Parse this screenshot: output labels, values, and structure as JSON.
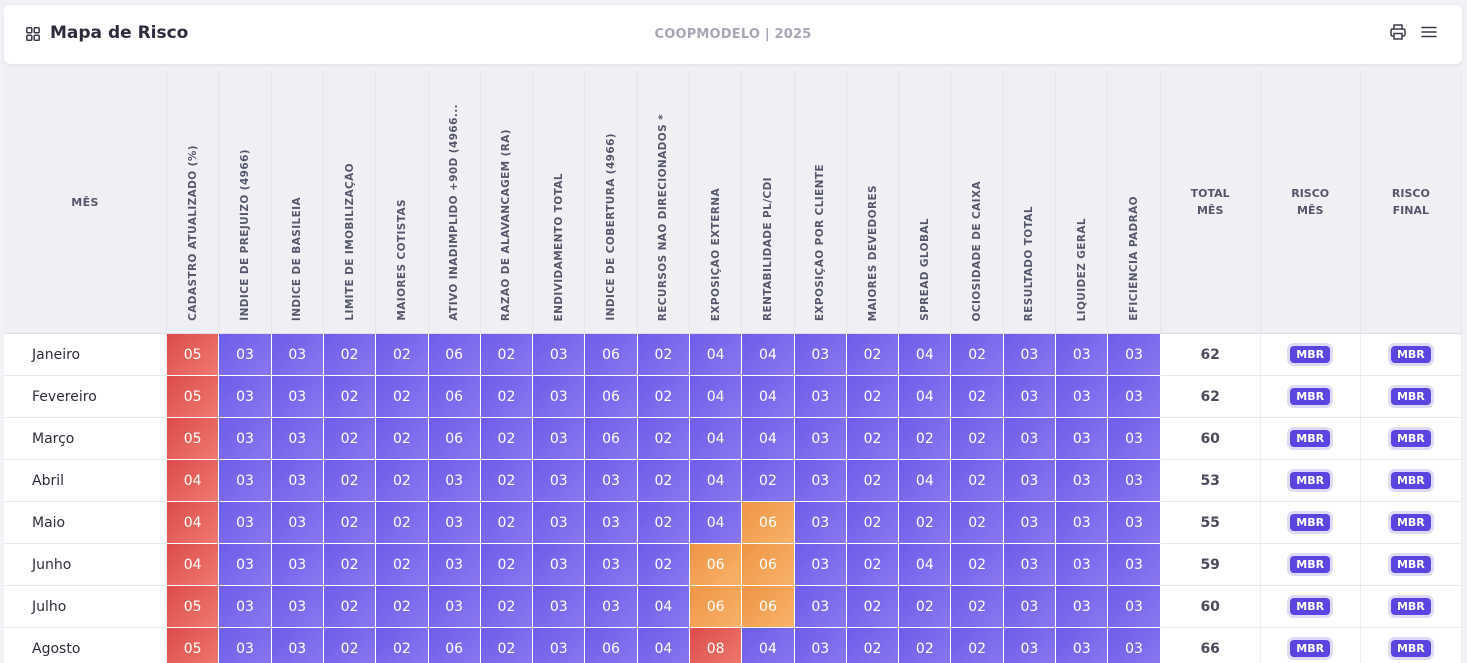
{
  "header": {
    "title": "Mapa de Risco",
    "center_text": "COOPMODELO | 2025",
    "icons": {
      "left": "grid-icon",
      "print": "print-icon",
      "menu": "menu-icon"
    }
  },
  "table": {
    "month_header": "MÊS",
    "columns": [
      "CADASTRO ATUALIZADO (%)",
      "ÍNDICE DE PREJUÍZO (4966)",
      "ÍNDICE DE BASILEIA",
      "LIMITE DE IMOBILIZAÇÃO",
      "MAIORES COTISTAS",
      "ATIVO INADIMPLIDO +90D (4966...",
      "RAZÃO DE ALAVANCAGEM (RA)",
      "ENDIVIDAMENTO TOTAL",
      "ÍNDICE DE COBERTURA (4966)",
      "RECURSOS NÃO DIRECIONADOS *",
      "EXPOSIÇÃO EXTERNA",
      "RENTABILIDADE PL/CDI",
      "EXPOSIÇÃO POR CLIENTE",
      "MAIORES DEVEDORES",
      "SPREAD GLOBAL",
      "OCIOSIDADE DE CAIXA",
      "RESULTADO TOTAL",
      "LIQUIDEZ GERAL",
      "EFICIÊNCIA PADRÃO"
    ],
    "total_header": [
      "TOTAL",
      "MÊS"
    ],
    "risk_month_header": [
      "RISCO",
      "MÊS"
    ],
    "risk_final_header": [
      "RISCO",
      "FINAL"
    ],
    "colors": {
      "purple": "#6d5ce8",
      "red": "#dc4b4b",
      "orange": "#ef9445",
      "badge": "#5a45e0"
    },
    "rows": [
      {
        "month": "Janeiro",
        "scores": [
          "05",
          "03",
          "03",
          "02",
          "02",
          "06",
          "02",
          "03",
          "06",
          "02",
          "04",
          "04",
          "03",
          "02",
          "04",
          "02",
          "03",
          "03",
          "03"
        ],
        "levels": [
          "red",
          "",
          "",
          "",
          "",
          "",
          "",
          "",
          "",
          "",
          "",
          "",
          "",
          "",
          "",
          "",
          "",
          "",
          ""
        ],
        "total": "62",
        "risk_month": "MBR",
        "risk_final": "MBR"
      },
      {
        "month": "Fevereiro",
        "scores": [
          "05",
          "03",
          "03",
          "02",
          "02",
          "06",
          "02",
          "03",
          "06",
          "02",
          "04",
          "04",
          "03",
          "02",
          "04",
          "02",
          "03",
          "03",
          "03"
        ],
        "levels": [
          "red",
          "",
          "",
          "",
          "",
          "",
          "",
          "",
          "",
          "",
          "",
          "",
          "",
          "",
          "",
          "",
          "",
          "",
          ""
        ],
        "total": "62",
        "risk_month": "MBR",
        "risk_final": "MBR"
      },
      {
        "month": "Março",
        "scores": [
          "05",
          "03",
          "03",
          "02",
          "02",
          "06",
          "02",
          "03",
          "06",
          "02",
          "04",
          "04",
          "03",
          "02",
          "02",
          "02",
          "03",
          "03",
          "03"
        ],
        "levels": [
          "red",
          "",
          "",
          "",
          "",
          "",
          "",
          "",
          "",
          "",
          "",
          "",
          "",
          "",
          "",
          "",
          "",
          "",
          ""
        ],
        "total": "60",
        "risk_month": "MBR",
        "risk_final": "MBR"
      },
      {
        "month": "Abril",
        "scores": [
          "04",
          "03",
          "03",
          "02",
          "02",
          "03",
          "02",
          "03",
          "03",
          "02",
          "04",
          "02",
          "03",
          "02",
          "04",
          "02",
          "03",
          "03",
          "03"
        ],
        "levels": [
          "red",
          "",
          "",
          "",
          "",
          "",
          "",
          "",
          "",
          "",
          "",
          "",
          "",
          "",
          "",
          "",
          "",
          "",
          ""
        ],
        "total": "53",
        "risk_month": "MBR",
        "risk_final": "MBR"
      },
      {
        "month": "Maio",
        "scores": [
          "04",
          "03",
          "03",
          "02",
          "02",
          "03",
          "02",
          "03",
          "03",
          "02",
          "04",
          "06",
          "03",
          "02",
          "02",
          "02",
          "03",
          "03",
          "03"
        ],
        "levels": [
          "red",
          "",
          "",
          "",
          "",
          "",
          "",
          "",
          "",
          "",
          "",
          "orange",
          "",
          "",
          "",
          "",
          "",
          "",
          ""
        ],
        "total": "55",
        "risk_month": "MBR",
        "risk_final": "MBR"
      },
      {
        "month": "Junho",
        "scores": [
          "04",
          "03",
          "03",
          "02",
          "02",
          "03",
          "02",
          "03",
          "03",
          "02",
          "06",
          "06",
          "03",
          "02",
          "04",
          "02",
          "03",
          "03",
          "03"
        ],
        "levels": [
          "red",
          "",
          "",
          "",
          "",
          "",
          "",
          "",
          "",
          "",
          "orange",
          "orange",
          "",
          "",
          "",
          "",
          "",
          "",
          ""
        ],
        "total": "59",
        "risk_month": "MBR",
        "risk_final": "MBR"
      },
      {
        "month": "Julho",
        "scores": [
          "05",
          "03",
          "03",
          "02",
          "02",
          "03",
          "02",
          "03",
          "03",
          "04",
          "06",
          "06",
          "03",
          "02",
          "02",
          "02",
          "03",
          "03",
          "03"
        ],
        "levels": [
          "red",
          "",
          "",
          "",
          "",
          "",
          "",
          "",
          "",
          "",
          "orange",
          "orange",
          "",
          "",
          "",
          "",
          "",
          "",
          ""
        ],
        "total": "60",
        "risk_month": "MBR",
        "risk_final": "MBR"
      },
      {
        "month": "Agosto",
        "scores": [
          "05",
          "03",
          "03",
          "02",
          "02",
          "06",
          "02",
          "03",
          "06",
          "04",
          "08",
          "04",
          "03",
          "02",
          "02",
          "02",
          "03",
          "03",
          "03"
        ],
        "levels": [
          "red",
          "",
          "",
          "",
          "",
          "",
          "",
          "",
          "",
          "",
          "red",
          "",
          "",
          "",
          "",
          "",
          "",
          "",
          ""
        ],
        "total": "66",
        "risk_month": "MBR",
        "risk_final": "MBR"
      }
    ]
  }
}
